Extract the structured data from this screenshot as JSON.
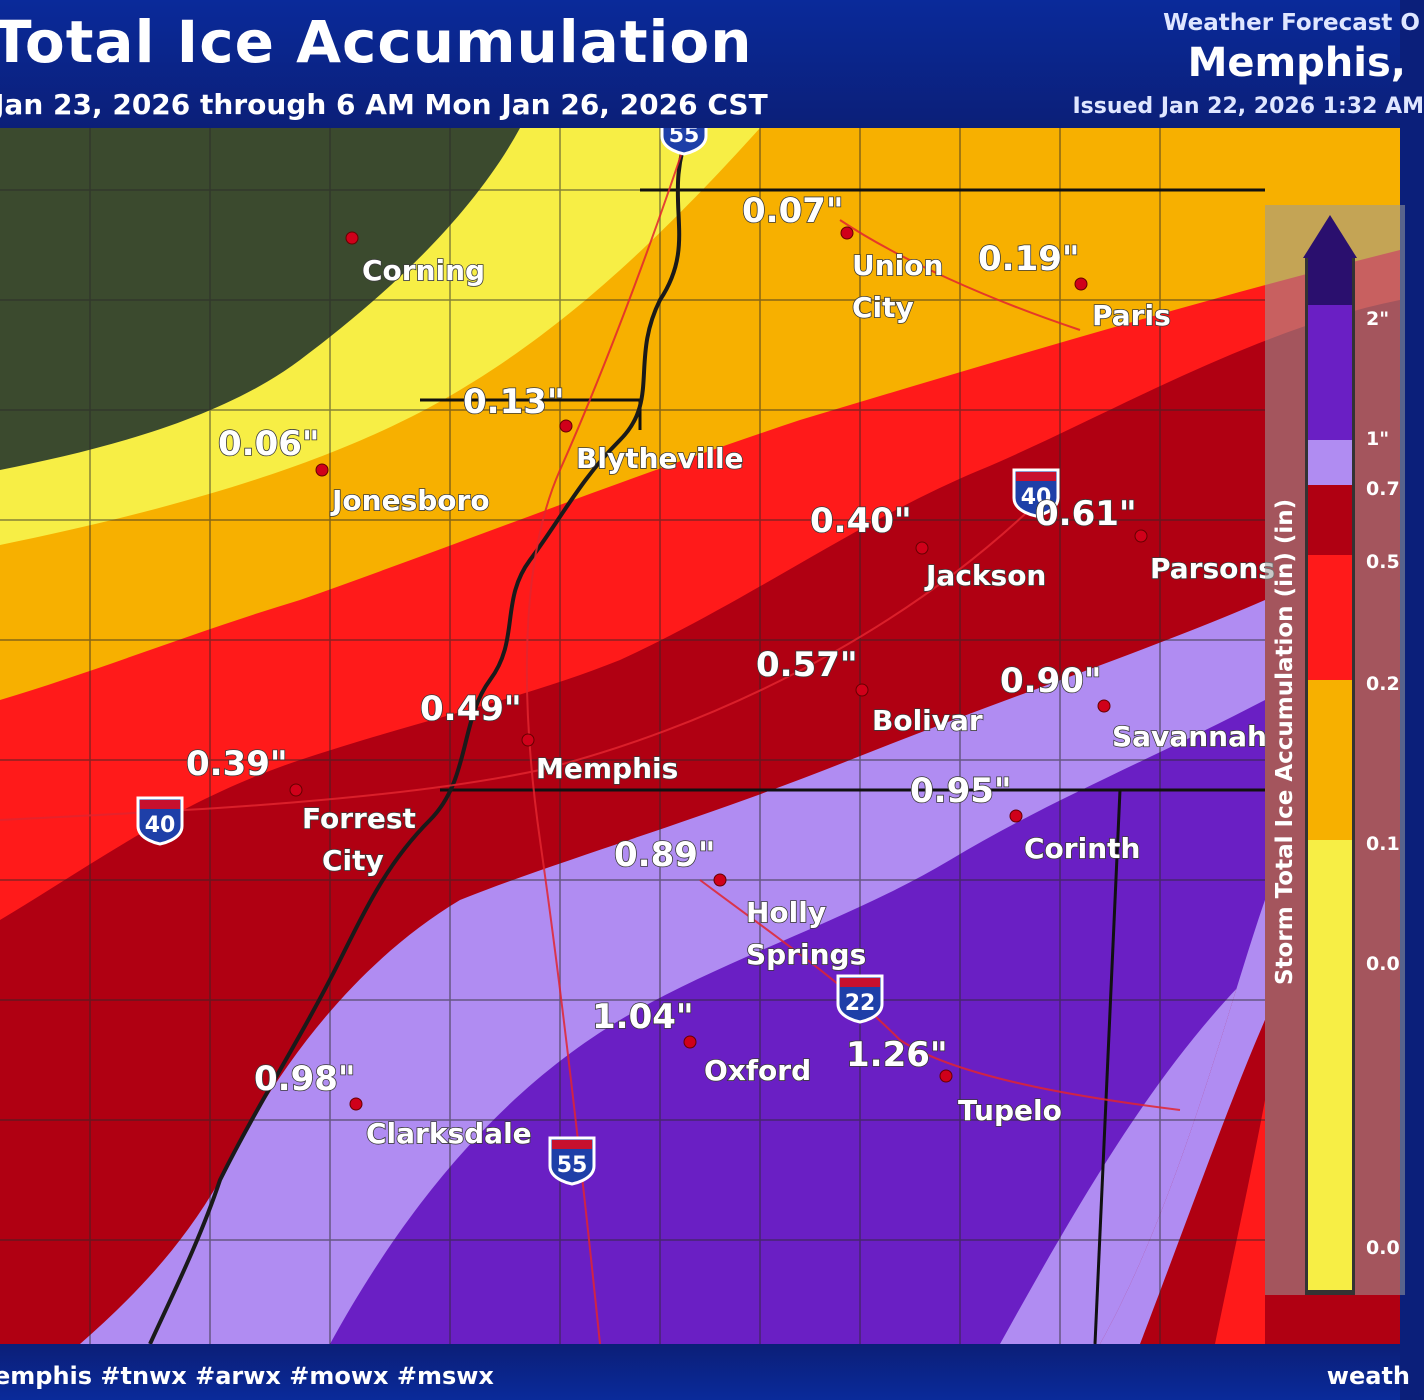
{
  "header": {
    "title": "Total Ice Accumulation",
    "subtitle": "Jan 23, 2026 through 6 AM Mon Jan 26, 2026 CST",
    "office_line1": "Weather Forecast O",
    "office_line2": "Memphis,",
    "issued": "Issued Jan 22, 2026 1:32 AM"
  },
  "footer": {
    "hashtags": "emphis #tnwx #arwx #mowx #mswx",
    "website": "weath"
  },
  "legend": {
    "title": "Storm Total Ice Accumulation (in) (in)",
    "ticks": [
      "2\"",
      "1\"",
      "0.7",
      "0.5",
      "0.2",
      "0.1",
      "0.0",
      "0.0"
    ],
    "colors": {
      "gt2": "#2a0f6e",
      "1_2": "#6a1fc4",
      "075_1": "#b08cf2",
      "05_075": "#b00012",
      "025_05": "#ff1a1a",
      "01_025": "#f7b000",
      "001_01": "#f7ee45",
      "base": "#3b4a2e"
    }
  },
  "locations": [
    {
      "amount": "0.07\"",
      "city": "Union City"
    },
    {
      "amount": "0.19\"",
      "city": "Paris"
    },
    {
      "amount": "",
      "city": "Corning"
    },
    {
      "amount": "0.13\"",
      "city": "Blytheville"
    },
    {
      "amount": "0.06\"",
      "city": "Jonesboro"
    },
    {
      "amount": "0.40\"",
      "city": "Jackson"
    },
    {
      "amount": "0.61\"",
      "city": "Parsons"
    },
    {
      "amount": "0.57\"",
      "city": "Bolivar"
    },
    {
      "amount": "0.90\"",
      "city": "Savannah"
    },
    {
      "amount": "0.49\"",
      "city": "Memphis"
    },
    {
      "amount": "0.39\"",
      "city": "Forrest City"
    },
    {
      "amount": "0.95\"",
      "city": "Corinth"
    },
    {
      "amount": "0.89\"",
      "city": "Holly Springs"
    },
    {
      "amount": "1.04\"",
      "city": "Oxford"
    },
    {
      "amount": "1.26\"",
      "city": "Tupelo"
    },
    {
      "amount": "0.98\"",
      "city": "Clarksdale"
    }
  ],
  "highways": [
    "55",
    "40",
    "40",
    "22",
    "55"
  ]
}
